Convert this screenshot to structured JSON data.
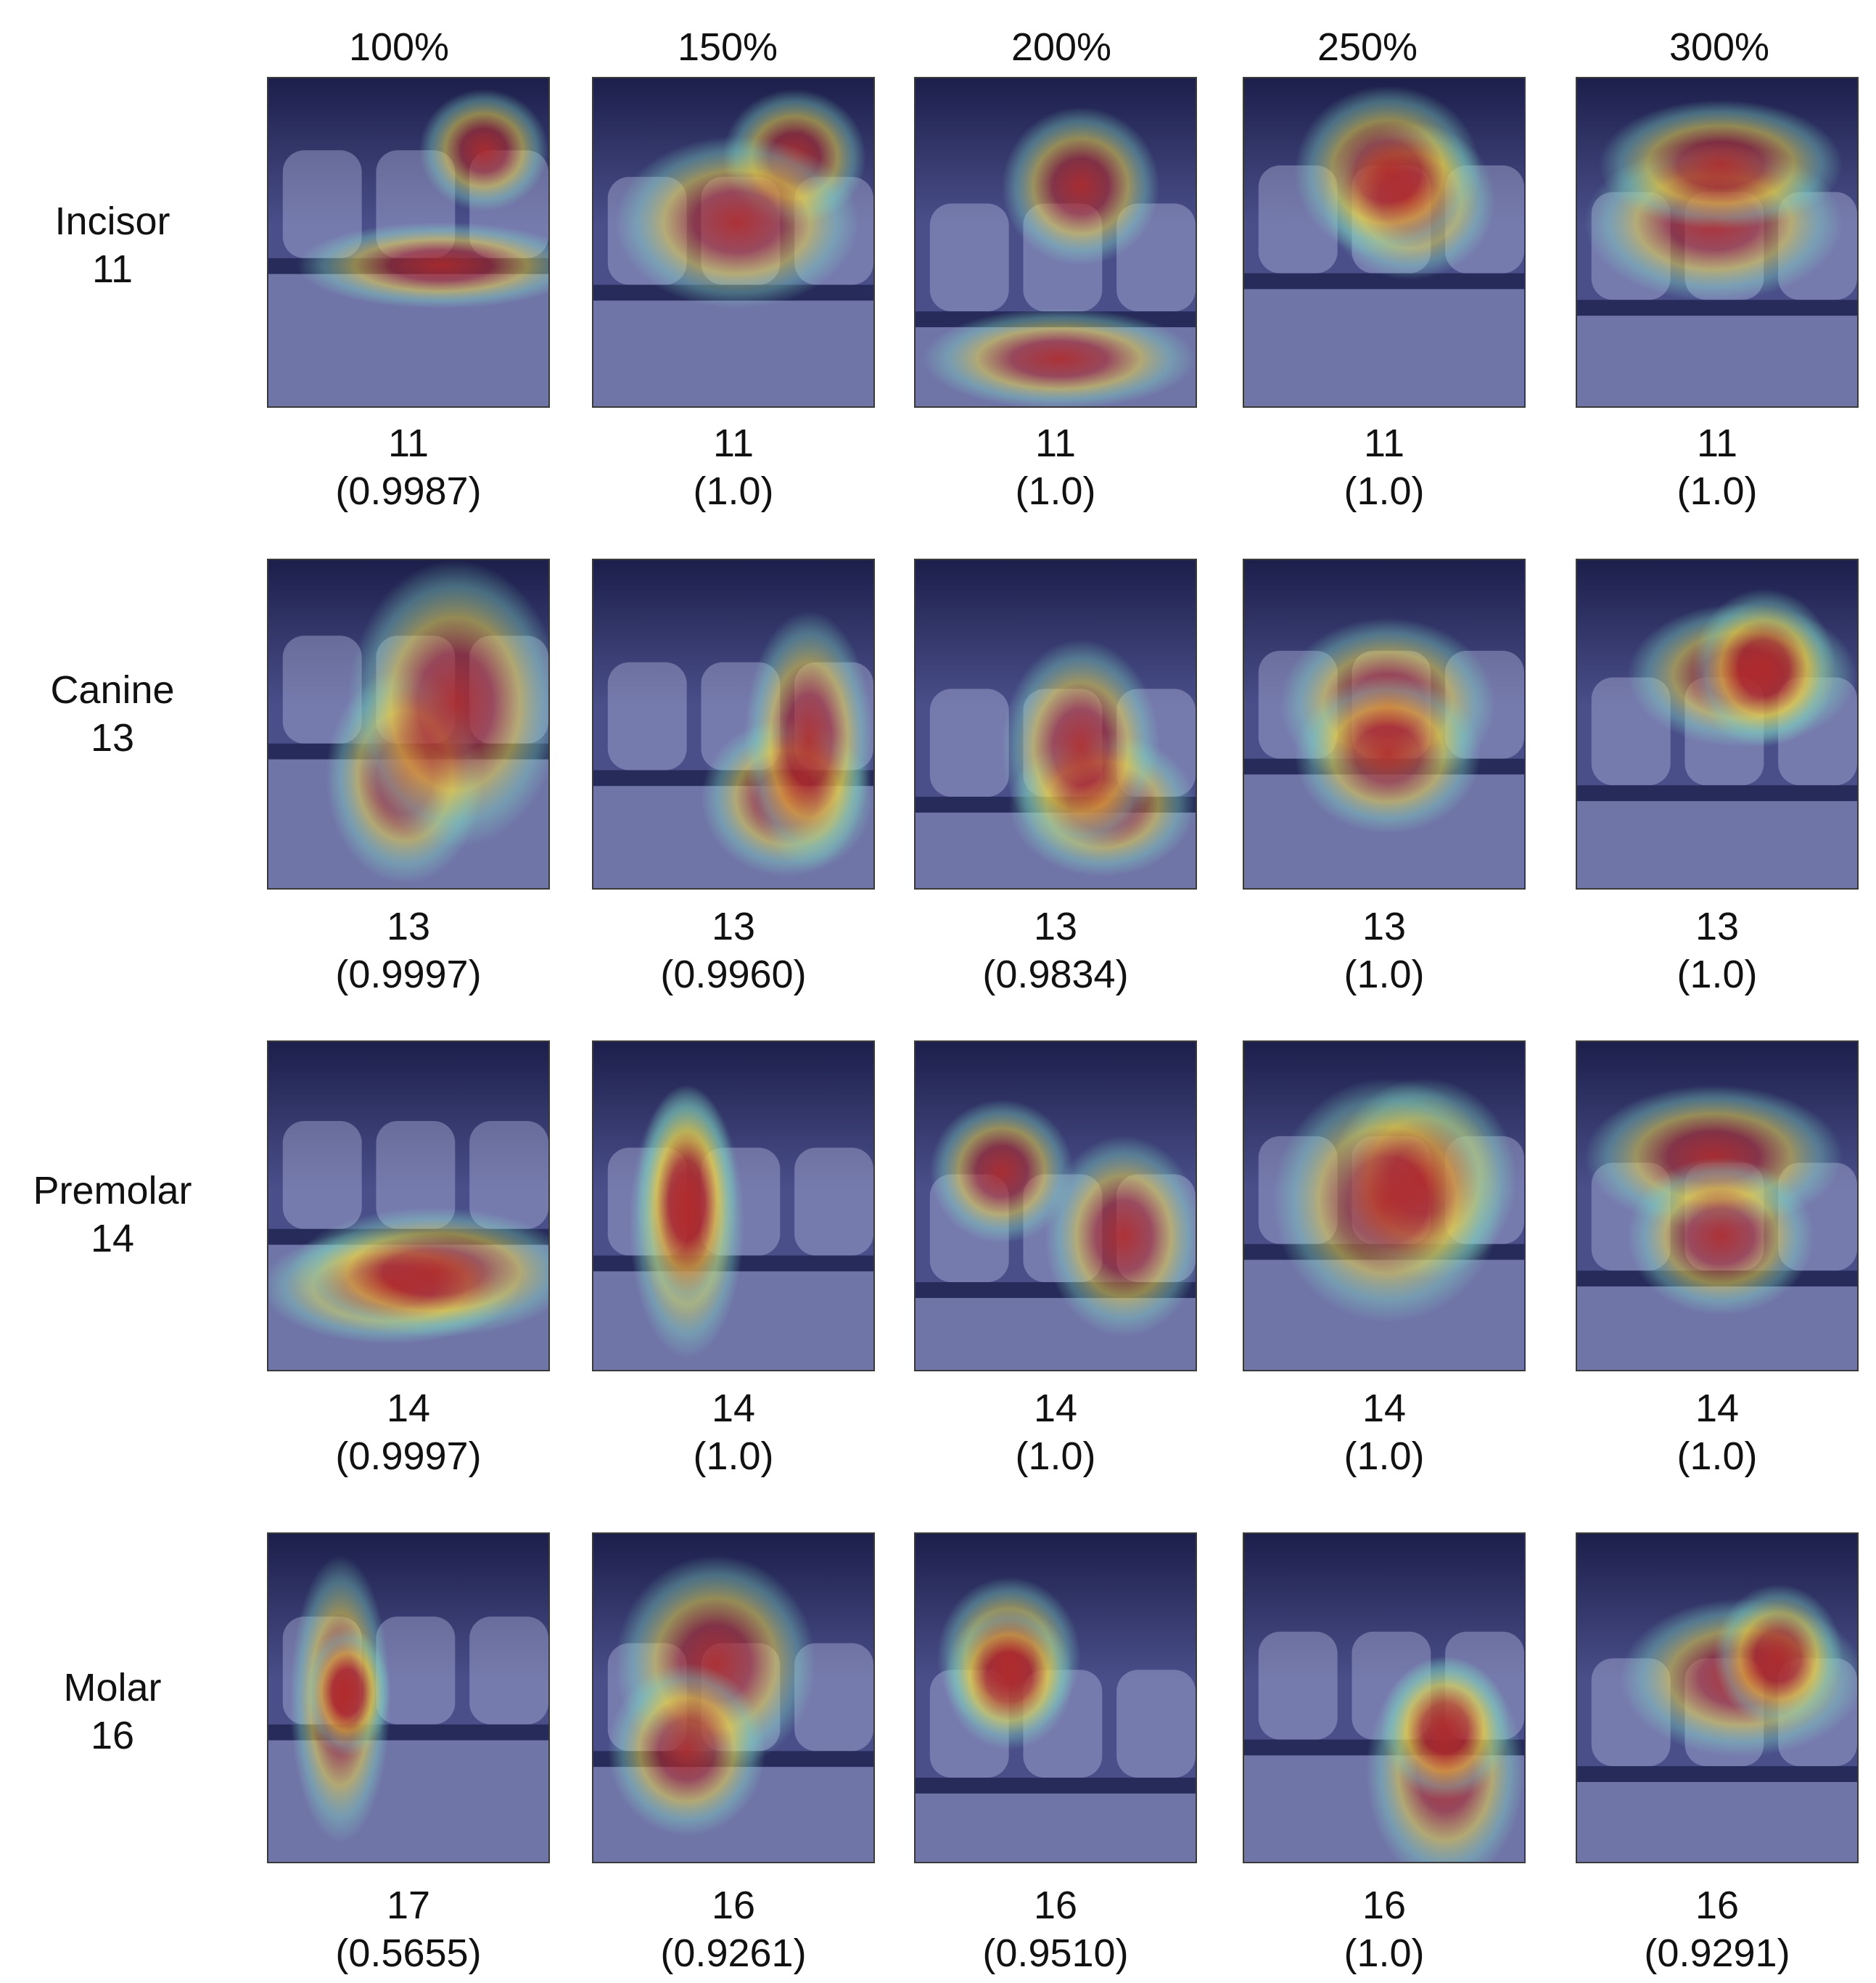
{
  "columns": [
    "100%",
    "150%",
    "200%",
    "250%",
    "300%"
  ],
  "rows": [
    {
      "class_name": "Incisor",
      "tooth_number": "11",
      "cells": [
        {
          "prediction": "11",
          "confidence": "(0.9987)"
        },
        {
          "prediction": "11",
          "confidence": "(1.0)"
        },
        {
          "prediction": "11",
          "confidence": "(1.0)"
        },
        {
          "prediction": "11",
          "confidence": "(1.0)"
        },
        {
          "prediction": "11",
          "confidence": "(1.0)"
        }
      ]
    },
    {
      "class_name": "Canine",
      "tooth_number": "13",
      "cells": [
        {
          "prediction": "13",
          "confidence": "(0.9997)"
        },
        {
          "prediction": "13",
          "confidence": "(0.9960)"
        },
        {
          "prediction": "13",
          "confidence": "(0.9834)"
        },
        {
          "prediction": "13",
          "confidence": "(1.0)"
        },
        {
          "prediction": "13",
          "confidence": "(1.0)"
        }
      ]
    },
    {
      "class_name": "Premolar",
      "tooth_number": "14",
      "cells": [
        {
          "prediction": "14",
          "confidence": "(0.9997)"
        },
        {
          "prediction": "14",
          "confidence": "(1.0)"
        },
        {
          "prediction": "14",
          "confidence": "(1.0)"
        },
        {
          "prediction": "14",
          "confidence": "(1.0)"
        },
        {
          "prediction": "14",
          "confidence": "(1.0)"
        }
      ]
    },
    {
      "class_name": "Molar",
      "tooth_number": "16",
      "cells": [
        {
          "prediction": "17",
          "confidence": "(0.5655)"
        },
        {
          "prediction": "16",
          "confidence": "(0.9261)"
        },
        {
          "prediction": "16",
          "confidence": "(0.9510)"
        },
        {
          "prediction": "16",
          "confidence": "(1.0)"
        },
        {
          "prediction": "16",
          "confidence": "(0.9291)"
        }
      ]
    }
  ],
  "colors": {
    "xray_base": "#4a4f8a",
    "xray_dark": "#1c1f4a",
    "heat_hot": "#b22a2a",
    "heat_warm": "#e8d24a",
    "heat_mid": "#7fd3c0",
    "tooth_light": "#c9cdf0"
  }
}
